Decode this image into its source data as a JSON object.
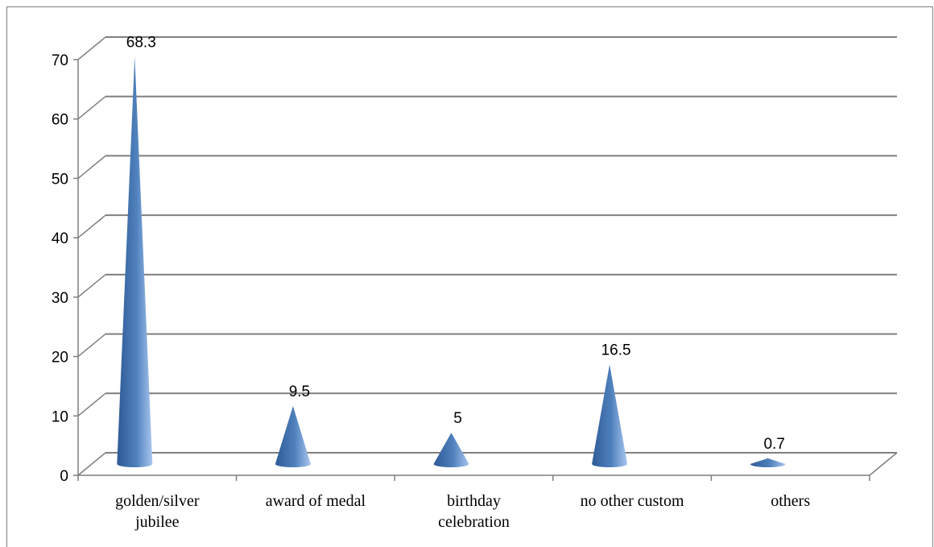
{
  "chart_data": {
    "type": "bar",
    "style": "3d-cone",
    "title": "",
    "xlabel": "",
    "ylabel": "",
    "categories": [
      [
        "golden/silver",
        "jubilee"
      ],
      [
        "award of medal"
      ],
      [
        "birthday",
        "celebration"
      ],
      [
        "no other custom"
      ],
      [
        "others"
      ]
    ],
    "values": [
      68.3,
      9.5,
      5,
      16.5,
      0.7
    ],
    "value_labels": [
      "68.3",
      "9.5",
      "5",
      "16.5",
      "0.7"
    ],
    "ylim": [
      0,
      70
    ],
    "yticks": [
      0,
      10,
      20,
      30,
      40,
      50,
      60,
      70
    ],
    "grid": true,
    "legend": "none",
    "colors": {
      "cone_dark": "#2f5a96",
      "cone_mid": "#4f81bd",
      "cone_light": "#a9c6ef",
      "gridline": "#7f7f7f",
      "frame": "#808080"
    }
  }
}
